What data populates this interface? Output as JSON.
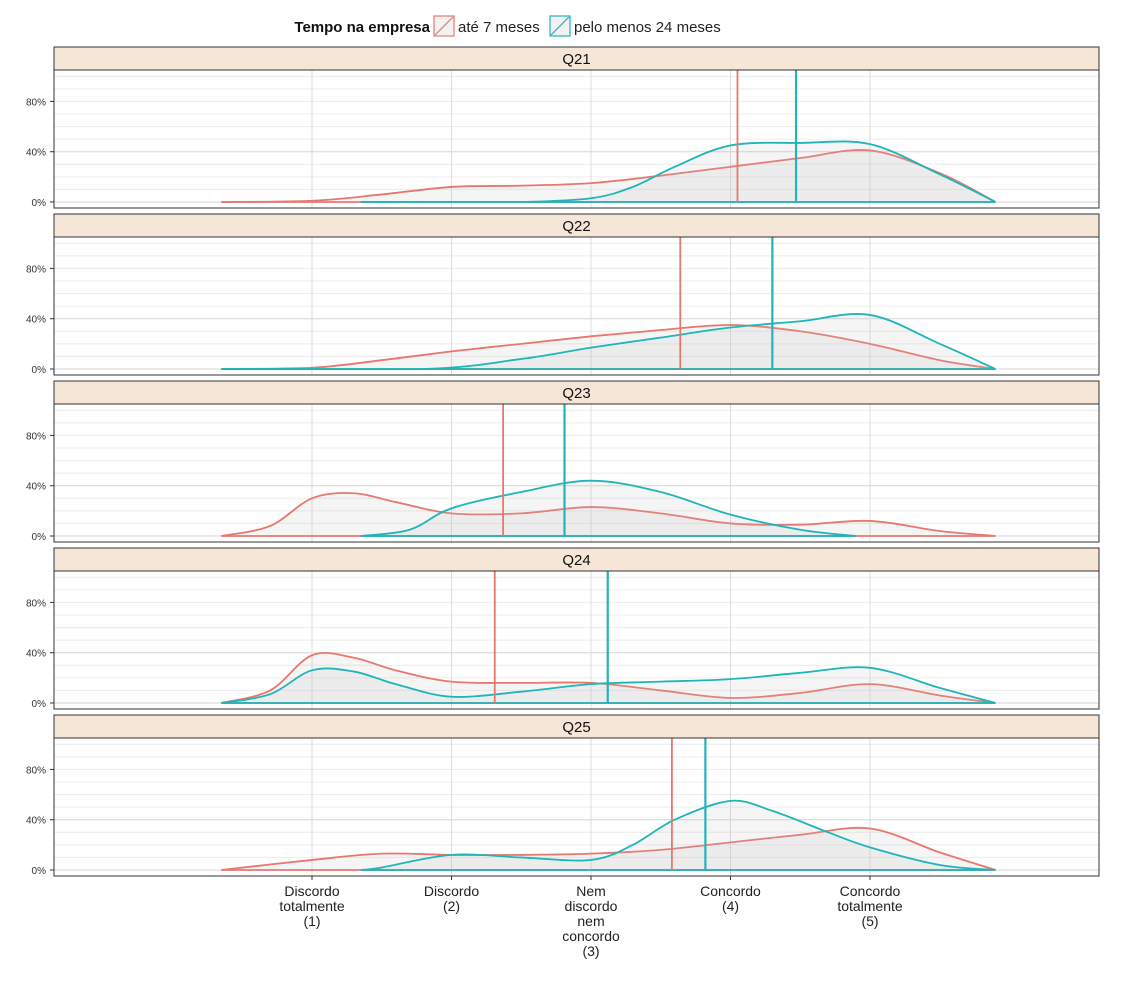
{
  "legend": {
    "title": "Tempo na empresa",
    "items": [
      {
        "label": "até 7 meses",
        "color": "#E8776F"
      },
      {
        "label": "pelo menos 24 meses",
        "color": "#1FB5B9"
      }
    ],
    "position": "top"
  },
  "chart_data": {
    "type": "area",
    "subtype": "faceted density (smoothed distribution) with mean lines",
    "x_categories": [
      {
        "value": 1,
        "label": [
          "Discordo",
          "totalmente",
          "(1)"
        ]
      },
      {
        "value": 2,
        "label": [
          "Discordo",
          "(2)"
        ]
      },
      {
        "value": 3,
        "label": [
          "Nem",
          "discordo",
          "nem",
          "concordo",
          "(3)"
        ]
      },
      {
        "value": 4,
        "label": [
          "Concordo",
          "(4)"
        ]
      },
      {
        "value": 5,
        "label": [
          "Concordo",
          "totalmente",
          "(5)"
        ]
      }
    ],
    "xlim": [
      0.1,
      5.9
    ],
    "ylim": [
      0,
      1.05
    ],
    "y_ticks": [
      0,
      0.4,
      0.8
    ],
    "y_tick_labels": [
      "0%",
      "40%",
      "80%"
    ],
    "grid": true,
    "series_colors": {
      "ate7": "#E8776F",
      "min24": "#1FB5B9"
    },
    "facets": [
      {
        "label": "Q21",
        "series": [
          {
            "key": "ate7",
            "x": [
              0.35,
              1,
              1.5,
              2,
              2.5,
              3,
              3.5,
              4,
              4.5,
              5,
              5.5,
              5.9
            ],
            "y": [
              0,
              0.01,
              0.06,
              0.12,
              0.13,
              0.15,
              0.21,
              0.28,
              0.35,
              0.41,
              0.23,
              0
            ]
          },
          {
            "key": "min24",
            "x": [
              1.35,
              2,
              2.5,
              3,
              3.3,
              3.6,
              4,
              4.5,
              5,
              5.5,
              5.9
            ],
            "y": [
              0,
              0,
              0,
              0.03,
              0.12,
              0.28,
              0.45,
              0.47,
              0.46,
              0.22,
              0
            ]
          }
        ],
        "means": {
          "ate7": 4.05,
          "min24": 4.47
        }
      },
      {
        "label": "Q22",
        "series": [
          {
            "key": "ate7",
            "x": [
              0.35,
              1,
              1.5,
              2,
              2.5,
              3,
              3.5,
              4,
              4.5,
              5,
              5.5,
              5.9
            ],
            "y": [
              0,
              0.01,
              0.07,
              0.14,
              0.2,
              0.26,
              0.31,
              0.35,
              0.3,
              0.2,
              0.07,
              0
            ]
          },
          {
            "key": "min24",
            "x": [
              0.35,
              1.8,
              2.5,
              3,
              3.5,
              4,
              4.5,
              5,
              5.5,
              5.9
            ],
            "y": [
              0,
              0,
              0.08,
              0.17,
              0.25,
              0.33,
              0.38,
              0.43,
              0.2,
              0
            ]
          }
        ],
        "means": {
          "ate7": 3.64,
          "min24": 4.3
        }
      },
      {
        "label": "Q23",
        "series": [
          {
            "key": "ate7",
            "x": [
              0.35,
              0.7,
              1,
              1.3,
              1.6,
              2,
              2.5,
              3,
              3.5,
              4,
              4.5,
              5,
              5.5,
              5.9
            ],
            "y": [
              0,
              0.08,
              0.3,
              0.34,
              0.27,
              0.18,
              0.18,
              0.23,
              0.18,
              0.1,
              0.09,
              0.12,
              0.04,
              0
            ]
          },
          {
            "key": "min24",
            "x": [
              1.35,
              1.7,
              2,
              2.5,
              3,
              3.5,
              4,
              4.5,
              4.9
            ],
            "y": [
              0,
              0.05,
              0.22,
              0.35,
              0.44,
              0.35,
              0.17,
              0.05,
              0
            ]
          }
        ],
        "means": {
          "ate7": 2.37,
          "min24": 2.81
        }
      },
      {
        "label": "Q24",
        "series": [
          {
            "key": "ate7",
            "x": [
              0.35,
              0.7,
              1,
              1.3,
              1.6,
              2,
              2.5,
              3,
              3.5,
              4,
              4.5,
              5,
              5.5,
              5.9
            ],
            "y": [
              0,
              0.1,
              0.38,
              0.36,
              0.26,
              0.17,
              0.16,
              0.16,
              0.1,
              0.04,
              0.08,
              0.15,
              0.06,
              0
            ]
          },
          {
            "key": "min24",
            "x": [
              0.35,
              0.7,
              1,
              1.3,
              1.6,
              2,
              2.5,
              3,
              3.5,
              4,
              4.5,
              5,
              5.5,
              5.9
            ],
            "y": [
              0,
              0.07,
              0.26,
              0.25,
              0.15,
              0.05,
              0.09,
              0.15,
              0.17,
              0.19,
              0.24,
              0.28,
              0.12,
              0
            ]
          }
        ],
        "means": {
          "ate7": 2.31,
          "min24": 3.12
        }
      },
      {
        "label": "Q25",
        "series": [
          {
            "key": "ate7",
            "x": [
              0.35,
              1,
              1.5,
              2,
              2.5,
              3,
              3.5,
              4,
              4.5,
              5,
              5.5,
              5.9
            ],
            "y": [
              0,
              0.08,
              0.13,
              0.12,
              0.12,
              0.13,
              0.16,
              0.22,
              0.28,
              0.33,
              0.14,
              0
            ]
          },
          {
            "key": "min24",
            "x": [
              1.35,
              1.5,
              2,
              2.5,
              3,
              3.3,
              3.6,
              4,
              4.3,
              4.7,
              5,
              5.5,
              5.9
            ],
            "y": [
              0,
              0.02,
              0.12,
              0.1,
              0.08,
              0.2,
              0.4,
              0.55,
              0.47,
              0.3,
              0.18,
              0.04,
              0
            ]
          }
        ],
        "means": {
          "ate7": 3.58,
          "min24": 3.82
        }
      }
    ]
  }
}
